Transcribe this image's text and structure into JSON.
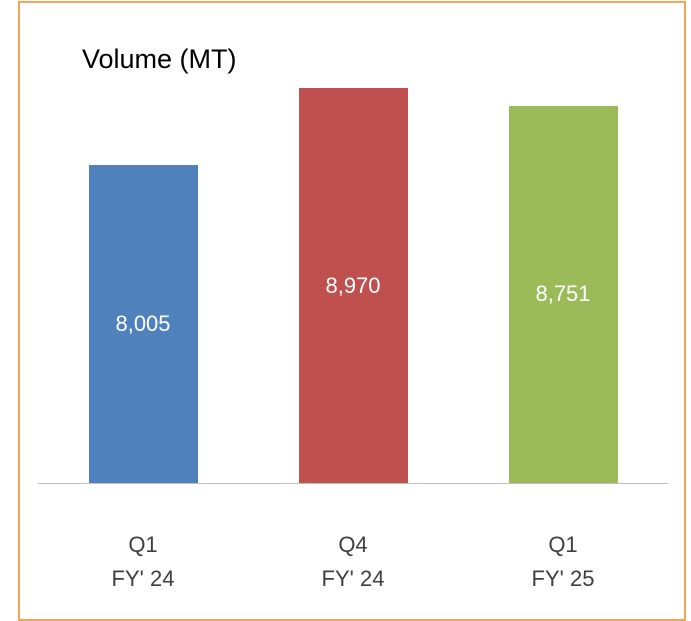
{
  "chart_data": {
    "type": "bar",
    "title": "Volume (MT)",
    "categories": [
      "Q1\nFY' 24",
      "Q4\nFY' 24",
      "Q1\nFY' 25"
    ],
    "values": [
      8005,
      8970,
      8751
    ],
    "value_labels": [
      "8,005",
      "8,970",
      "8,751"
    ],
    "colors": [
      "#4f81bd",
      "#c0504d",
      "#9bbb59"
    ],
    "ylim": [
      4000,
      9000
    ]
  }
}
